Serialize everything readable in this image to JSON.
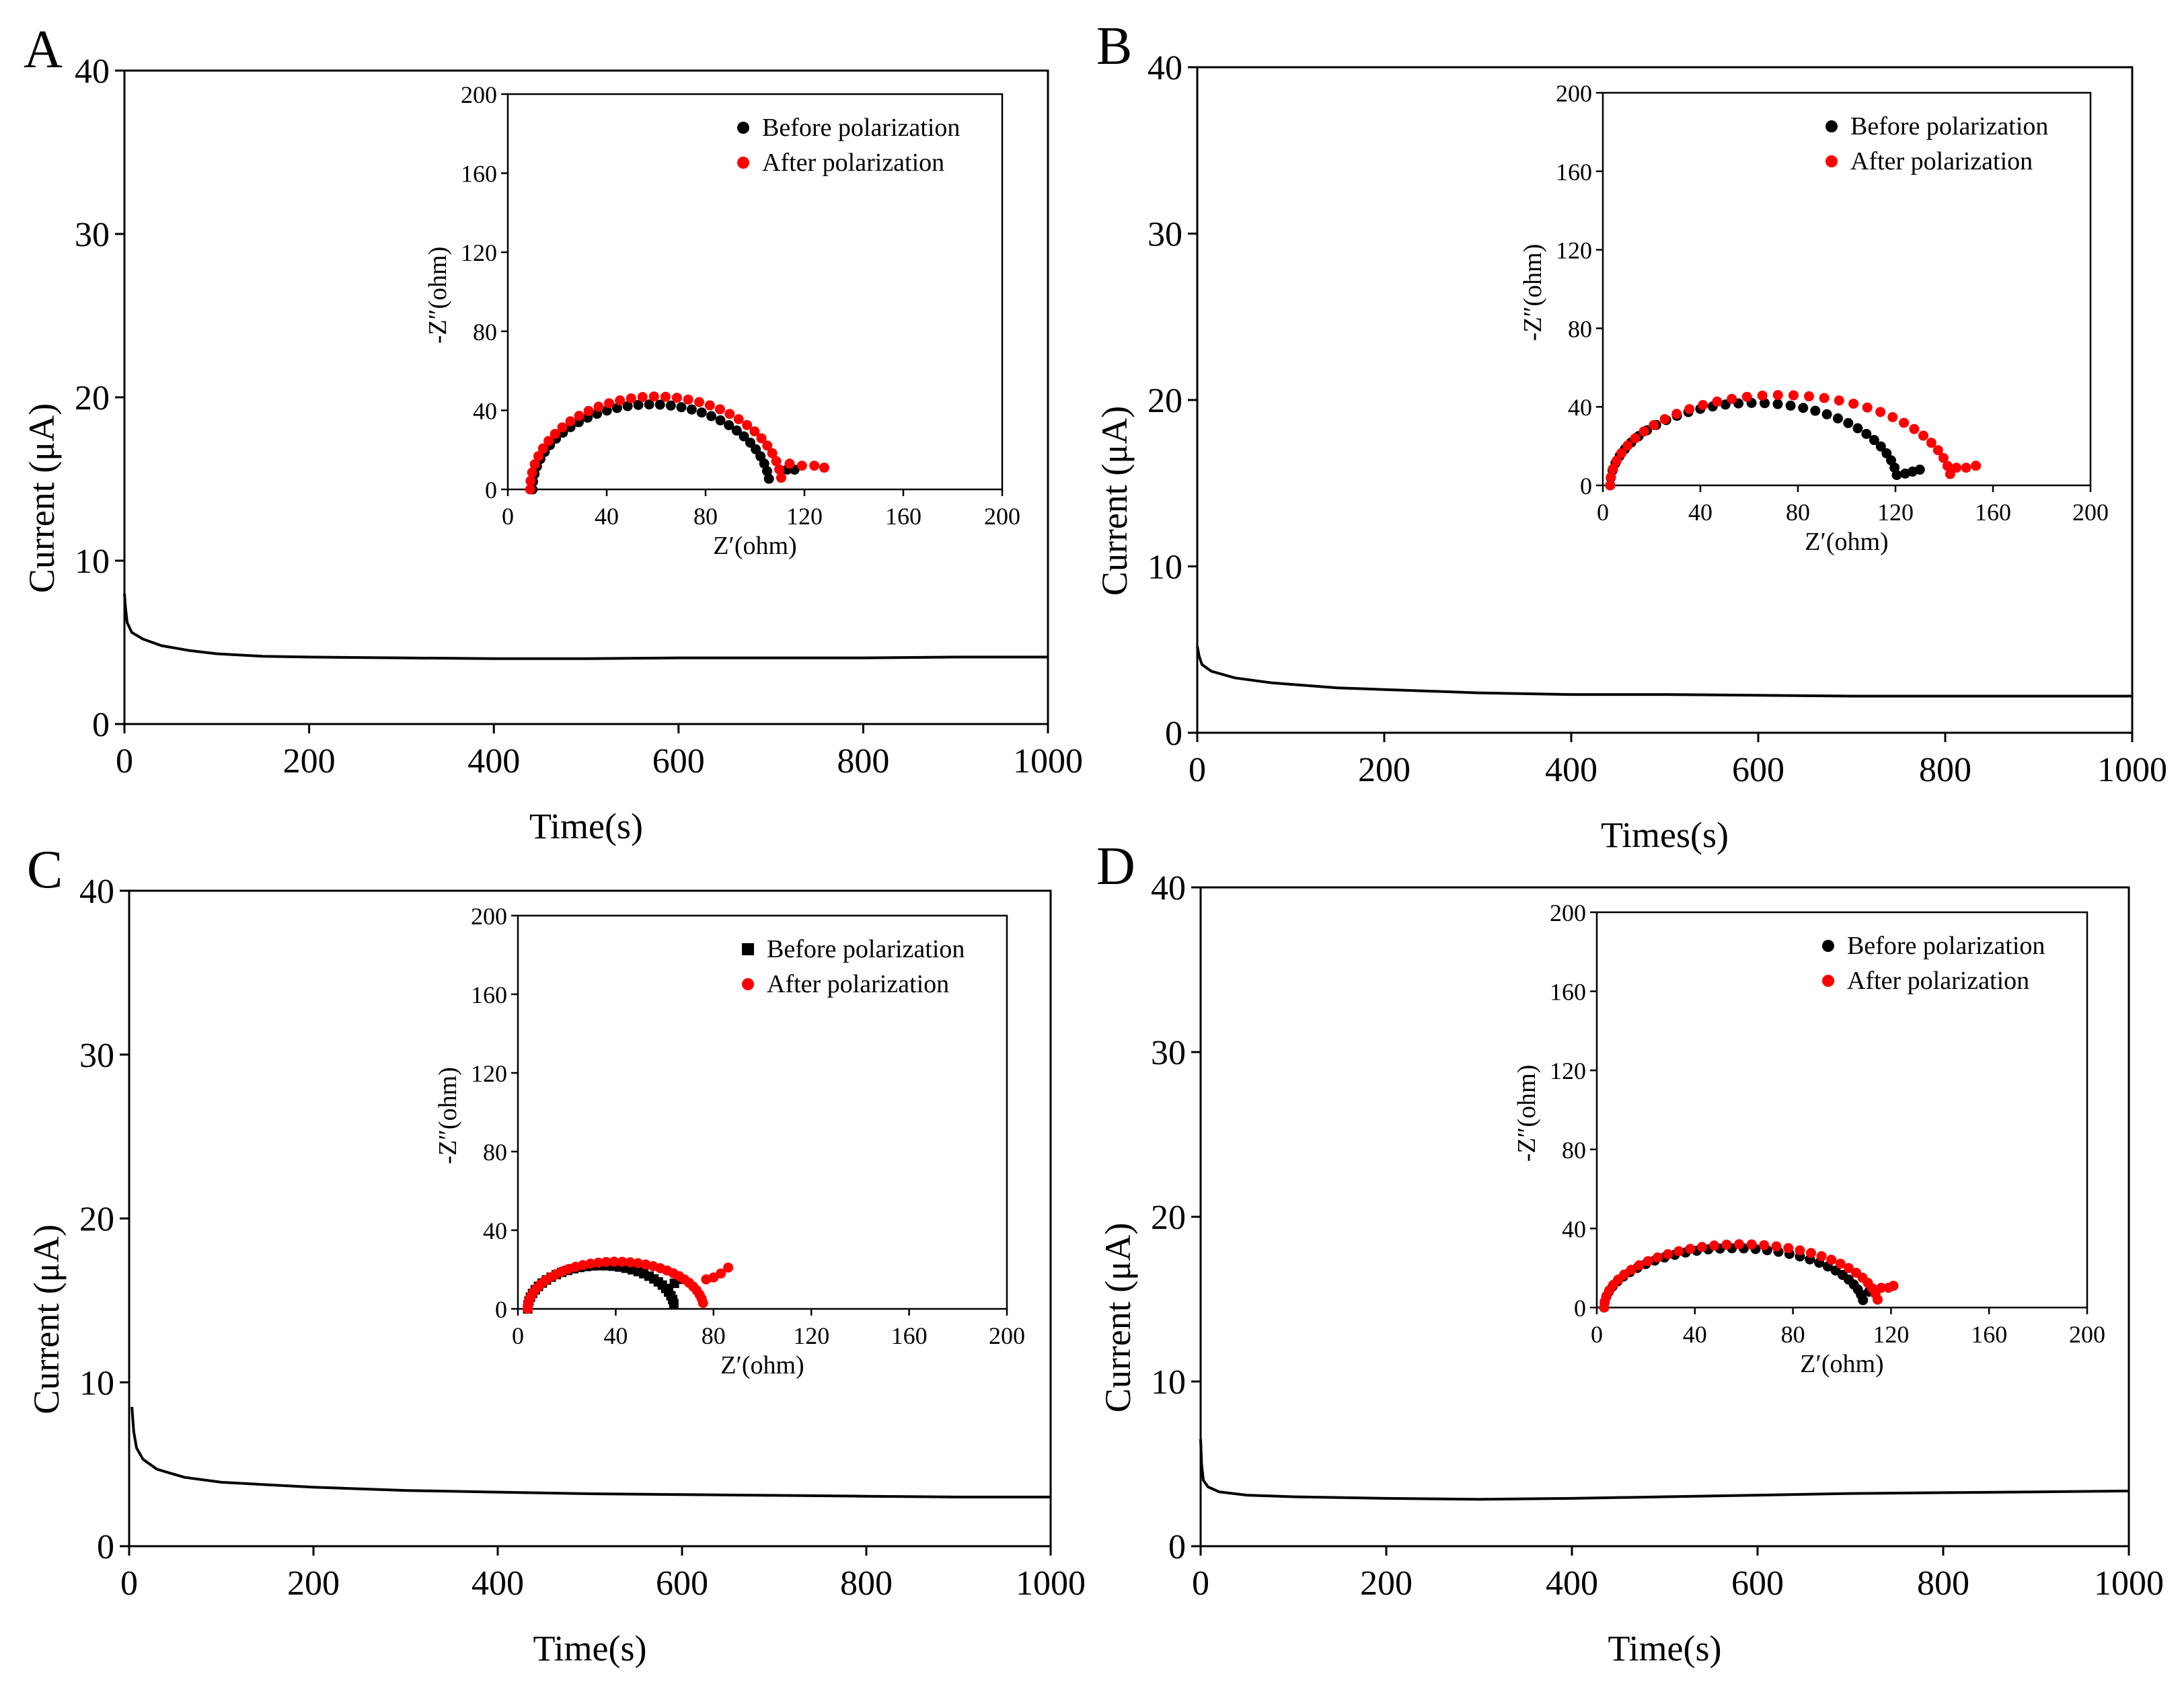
{
  "colors": {
    "before": "#000000",
    "after": "#ff0000",
    "line": "#000000"
  },
  "chart_data": [
    {
      "panel": "A",
      "type": "line",
      "xlabel": "Time(s)",
      "ylabel": "Current (μA)",
      "xlim": [
        0,
        1000
      ],
      "ylim": [
        0,
        40
      ],
      "xticks": [
        0,
        200,
        400,
        600,
        800,
        1000
      ],
      "yticks": [
        0,
        10,
        20,
        30,
        40
      ],
      "series": [
        {
          "name": "Current",
          "x": [
            0,
            1,
            3,
            8,
            20,
            40,
            70,
            100,
            150,
            200,
            300,
            400,
            500,
            600,
            700,
            800,
            900,
            1000
          ],
          "y": [
            8,
            7.2,
            6.2,
            5.6,
            5.2,
            4.8,
            4.5,
            4.3,
            4.15,
            4.1,
            4.05,
            4.0,
            4.0,
            4.05,
            4.05,
            4.05,
            4.1,
            4.1
          ]
        }
      ],
      "inset": {
        "type": "scatter",
        "xlabel": "Z′(ohm)",
        "ylabel": "-Z″(ohm)",
        "xlim": [
          0,
          200
        ],
        "ylim": [
          0,
          200
        ],
        "xticks": [
          0,
          40,
          80,
          120,
          160,
          200
        ],
        "yticks": [
          0,
          40,
          80,
          120,
          160,
          200
        ],
        "legend": [
          "Before polarization",
          "After polarization"
        ],
        "series": [
          {
            "name": "Before polarization",
            "start": 2,
            "center": 58,
            "radius": 48,
            "hmax": 43,
            "tailX": [
              113,
              116
            ],
            "tailY": [
              10,
              10
            ]
          },
          {
            "name": "After polarization",
            "start": 2,
            "center": 60,
            "radius": 51,
            "hmax": 47,
            "tailX": [
              114,
              119,
              124,
              128
            ],
            "tailY": [
              13,
              12,
              12,
              11
            ]
          }
        ]
      }
    },
    {
      "panel": "B",
      "type": "line",
      "xlabel": "Times(s)",
      "ylabel": "Current (μA)",
      "xlim": [
        0,
        1000
      ],
      "ylim": [
        0,
        40
      ],
      "xticks": [
        0,
        200,
        400,
        600,
        800,
        1000
      ],
      "yticks": [
        0,
        10,
        20,
        30,
        40
      ],
      "series": [
        {
          "name": "Current",
          "x": [
            0,
            2,
            5,
            15,
            40,
            80,
            150,
            200,
            300,
            400,
            500,
            600,
            700,
            800,
            900,
            1000
          ],
          "y": [
            5.2,
            4.6,
            4.1,
            3.7,
            3.3,
            3.0,
            2.7,
            2.6,
            2.4,
            2.3,
            2.3,
            2.25,
            2.2,
            2.2,
            2.2,
            2.2
          ]
        }
      ],
      "inset": {
        "type": "scatter",
        "xlabel": "Z′(ohm)",
        "ylabel": "-Z″(ohm)",
        "xlim": [
          0,
          200
        ],
        "ylim": [
          0,
          200
        ],
        "xticks": [
          0,
          40,
          80,
          120,
          160,
          200
        ],
        "yticks": [
          0,
          40,
          80,
          120,
          160,
          200
        ],
        "legend": [
          "Before polarization",
          "After polarization"
        ],
        "series": [
          {
            "name": "Before polarization",
            "start": 3,
            "center": 62,
            "radius": 59,
            "hmax": 42,
            "tailX": [
              124,
              127,
              130
            ],
            "tailY": [
              6,
              7,
              8
            ]
          },
          {
            "name": "After polarization",
            "start": 3,
            "center": 73,
            "radius": 70,
            "hmax": 46,
            "tailX": [
              145,
              149,
              153
            ],
            "tailY": [
              9,
              9,
              10
            ]
          }
        ]
      }
    },
    {
      "panel": "C",
      "type": "line",
      "xlabel": "Time(s)",
      "ylabel": "Current (μA)",
      "xlim": [
        0,
        1000
      ],
      "ylim": [
        0,
        40
      ],
      "xticks": [
        0,
        200,
        400,
        600,
        800,
        1000
      ],
      "yticks": [
        0,
        10,
        20,
        30,
        40
      ],
      "series": [
        {
          "name": "Current",
          "x": [
            3,
            5,
            8,
            15,
            30,
            60,
            100,
            200,
            300,
            400,
            500,
            600,
            700,
            800,
            900,
            1000
          ],
          "y": [
            8.5,
            7.0,
            6.0,
            5.3,
            4.7,
            4.2,
            3.9,
            3.6,
            3.4,
            3.3,
            3.2,
            3.15,
            3.1,
            3.05,
            3.0,
            3.0
          ]
        }
      ],
      "inset": {
        "type": "scatter",
        "xlabel": "Z′(ohm)",
        "ylabel": "-Z″(ohm)",
        "xlim": [
          0,
          200
        ],
        "ylim": [
          0,
          200
        ],
        "xticks": [
          0,
          40,
          80,
          120,
          160,
          200
        ],
        "yticks": [
          0,
          40,
          80,
          120,
          160,
          200
        ],
        "legend": [
          "Before polarization",
          "After polarization"
        ],
        "series": [
          {
            "name": "Before polarization",
            "start": 4,
            "center": 34,
            "radius": 30,
            "hmax": 22,
            "tailX": [
              64,
              66
            ],
            "tailY": [
              13,
              15
            ]
          },
          {
            "name": "After polarization",
            "start": 4,
            "center": 40,
            "radius": 36,
            "hmax": 24,
            "tailX": [
              77,
              80,
              83,
              86
            ],
            "tailY": [
              15,
              16,
              18,
              21
            ]
          }
        ]
      }
    },
    {
      "panel": "D",
      "type": "line",
      "xlabel": "Time(s)",
      "ylabel": "Current (μA)",
      "xlim": [
        0,
        1000
      ],
      "ylim": [
        0,
        40
      ],
      "xticks": [
        0,
        200,
        400,
        600,
        800,
        1000
      ],
      "yticks": [
        0,
        10,
        20,
        30,
        40
      ],
      "series": [
        {
          "name": "Current",
          "x": [
            0,
            1,
            3,
            8,
            20,
            50,
            100,
            200,
            300,
            400,
            500,
            600,
            700,
            800,
            900,
            1000
          ],
          "y": [
            6.5,
            5.0,
            4.0,
            3.6,
            3.3,
            3.1,
            3.0,
            2.9,
            2.85,
            2.9,
            3.0,
            3.1,
            3.2,
            3.25,
            3.3,
            3.35
          ]
        }
      ],
      "inset": {
        "type": "scatter",
        "xlabel": "Z′(ohm)",
        "ylabel": "-Z″(ohm)",
        "xlim": [
          0,
          200
        ],
        "ylim": [
          0,
          200
        ],
        "xticks": [
          0,
          40,
          80,
          120,
          160,
          200
        ],
        "yticks": [
          0,
          40,
          80,
          120,
          160,
          200
        ],
        "legend": [
          "Before polarization",
          "After polarization"
        ],
        "series": [
          {
            "name": "Before polarization",
            "start": 3,
            "center": 56,
            "radius": 53,
            "hmax": 30,
            "tailX": [
              111,
              113
            ],
            "tailY": [
              8,
              8
            ]
          },
          {
            "name": "After polarization",
            "start": 3,
            "center": 59,
            "radius": 56,
            "hmax": 32,
            "tailX": [
              116,
              119,
              121
            ],
            "tailY": [
              10,
              10,
              11
            ]
          }
        ]
      }
    }
  ]
}
